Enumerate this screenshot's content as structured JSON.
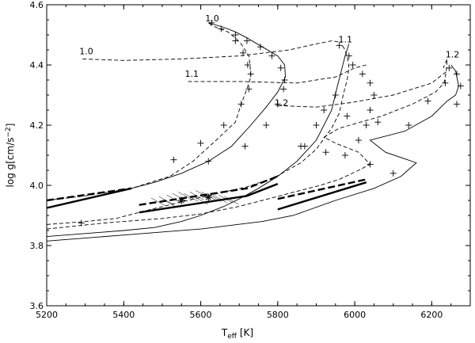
{
  "chart_data": {
    "type": "line",
    "xlabel": "T",
    "xlabel_sub": "eff",
    "xlabel_unit": " [K]",
    "ylabel": "log g[cm/s",
    "ylabel_sup": "−2",
    "ylabel_end": "]",
    "xlim": [
      5200,
      6300
    ],
    "ylim": [
      3.6,
      4.6
    ],
    "xticks": [
      5200,
      5400,
      5600,
      5800,
      6000,
      6200
    ],
    "yticks": [
      3.6,
      3.8,
      4.0,
      4.2,
      4.4,
      4.6
    ],
    "grid": false,
    "annotations": [
      {
        "text": "1.0",
        "x": 5620,
        "y": 4.545
      },
      {
        "text": "1.0",
        "x": 5293,
        "y": 4.435
      },
      {
        "text": "1.1",
        "x": 5966,
        "y": 4.475
      },
      {
        "text": "1.1",
        "x": 5567,
        "y": 4.36
      },
      {
        "text": "1.2",
        "x": 6244,
        "y": 4.425
      },
      {
        "text": "1.2",
        "x": 5800,
        "y": 4.265
      }
    ],
    "series": [
      {
        "style": "solid",
        "points": [
          [
            5200,
            3.83
          ],
          [
            5300,
            3.84
          ],
          [
            5400,
            3.85
          ],
          [
            5480,
            3.86
          ],
          [
            5550,
            3.88
          ],
          [
            5600,
            3.9
          ],
          [
            5660,
            3.93
          ],
          [
            5700,
            3.955
          ],
          [
            5750,
            3.99
          ],
          [
            5800,
            4.03
          ],
          [
            5850,
            4.08
          ],
          [
            5900,
            4.15
          ],
          [
            5940,
            4.25
          ],
          [
            5955,
            4.33
          ],
          [
            5965,
            4.38
          ],
          [
            5975,
            4.43
          ],
          [
            5985,
            4.47
          ]
        ]
      },
      {
        "style": "solid",
        "points": [
          [
            5200,
            3.815
          ],
          [
            5400,
            3.835
          ],
          [
            5600,
            3.855
          ],
          [
            5760,
            3.88
          ],
          [
            5840,
            3.9
          ],
          [
            5950,
            3.95
          ],
          [
            6050,
            3.99
          ],
          [
            6120,
            4.03
          ],
          [
            6160,
            4.075
          ],
          [
            6080,
            4.11
          ],
          [
            6040,
            4.15
          ],
          [
            6130,
            4.18
          ],
          [
            6200,
            4.23
          ],
          [
            6240,
            4.28
          ],
          [
            6262,
            4.3
          ],
          [
            6270,
            4.33
          ],
          [
            6262,
            4.38
          ],
          [
            6250,
            4.4
          ]
        ]
      },
      {
        "style": "solid",
        "points": [
          [
            5200,
            3.925
          ],
          [
            5300,
            3.955
          ],
          [
            5420,
            3.99
          ],
          [
            5480,
            4.01
          ],
          [
            5550,
            4.04
          ],
          [
            5620,
            4.08
          ],
          [
            5680,
            4.13
          ],
          [
            5730,
            4.2
          ],
          [
            5770,
            4.26
          ],
          [
            5800,
            4.31
          ],
          [
            5820,
            4.36
          ],
          [
            5818,
            4.4
          ],
          [
            5800,
            4.43
          ],
          [
            5760,
            4.46
          ],
          [
            5720,
            4.49
          ],
          [
            5690,
            4.51
          ],
          [
            5660,
            4.525
          ],
          [
            5620,
            4.54
          ]
        ]
      },
      {
        "style": "dashed",
        "points": [
          [
            5200,
            3.95
          ],
          [
            5300,
            3.965
          ],
          [
            5420,
            3.99
          ],
          [
            5520,
            4.03
          ],
          [
            5580,
            4.08
          ],
          [
            5640,
            4.15
          ],
          [
            5690,
            4.21
          ],
          [
            5705,
            4.27
          ],
          [
            5720,
            4.32
          ],
          [
            5730,
            4.36
          ],
          [
            5728,
            4.4
          ],
          [
            5725,
            4.43
          ],
          [
            5715,
            4.45
          ],
          [
            5705,
            4.47
          ],
          [
            5690,
            4.49
          ],
          [
            5670,
            4.51
          ],
          [
            5630,
            4.53
          ],
          [
            5620,
            4.54
          ]
        ]
      },
      {
        "style": "dashed",
        "points": [
          [
            5200,
            3.87
          ],
          [
            5300,
            3.88
          ],
          [
            5380,
            3.89
          ],
          [
            5470,
            3.92
          ],
          [
            5550,
            3.945
          ],
          [
            5600,
            3.96
          ],
          [
            5650,
            3.975
          ],
          [
            5720,
            3.995
          ],
          [
            5790,
            4.025
          ],
          [
            5860,
            4.075
          ],
          [
            5900,
            4.12
          ],
          [
            5940,
            4.19
          ],
          [
            5960,
            4.24
          ],
          [
            5970,
            4.3
          ],
          [
            5980,
            4.35
          ],
          [
            5985,
            4.39
          ],
          [
            5982,
            4.42
          ],
          [
            5975,
            4.45
          ],
          [
            5965,
            4.47
          ]
        ]
      },
      {
        "style": "dashed",
        "points": [
          [
            5200,
            3.855
          ],
          [
            5350,
            3.875
          ],
          [
            5500,
            3.89
          ],
          [
            5600,
            3.905
          ],
          [
            5700,
            3.93
          ],
          [
            5790,
            3.96
          ],
          [
            5850,
            3.98
          ],
          [
            5910,
            4.0
          ],
          [
            5960,
            4.02
          ],
          [
            6010,
            4.05
          ],
          [
            6040,
            4.07
          ],
          [
            6010,
            4.11
          ],
          [
            5950,
            4.14
          ],
          [
            5920,
            4.16
          ],
          [
            5960,
            4.19
          ],
          [
            6070,
            4.23
          ],
          [
            6150,
            4.27
          ],
          [
            6210,
            4.31
          ],
          [
            6232,
            4.34
          ],
          [
            6238,
            4.38
          ],
          [
            6240,
            4.42
          ],
          [
            6230,
            4.39
          ]
        ]
      },
      {
        "style": "dashed",
        "points": [
          [
            5293,
            4.42
          ],
          [
            5400,
            4.415
          ],
          [
            5550,
            4.42
          ],
          [
            5700,
            4.43
          ],
          [
            5830,
            4.45
          ],
          [
            5900,
            4.47
          ],
          [
            5940,
            4.48
          ],
          [
            5966,
            4.475
          ]
        ]
      },
      {
        "style": "dashed",
        "points": [
          [
            5567,
            4.345
          ],
          [
            5700,
            4.345
          ],
          [
            5850,
            4.34
          ],
          [
            5950,
            4.36
          ],
          [
            6000,
            4.39
          ],
          [
            6030,
            4.4
          ]
        ]
      },
      {
        "style": "dashed",
        "points": [
          [
            5800,
            4.265
          ],
          [
            5900,
            4.26
          ],
          [
            5990,
            4.275
          ],
          [
            6100,
            4.3
          ],
          [
            6200,
            4.34
          ],
          [
            6240,
            4.38
          ]
        ]
      }
    ],
    "bold_segments": [
      {
        "style": "solid",
        "points": [
          [
            5200,
            3.925
          ],
          [
            5420,
            3.99
          ]
        ]
      },
      {
        "style": "solid",
        "points": [
          [
            5440,
            3.91
          ],
          [
            5720,
            3.965
          ],
          [
            5800,
            4.005
          ]
        ]
      },
      {
        "style": "solid",
        "points": [
          [
            5800,
            3.92
          ],
          [
            6030,
            4.01
          ]
        ]
      },
      {
        "style": "dashed",
        "points": [
          [
            5200,
            3.95
          ],
          [
            5420,
            3.99
          ]
        ]
      },
      {
        "style": "dashed",
        "points": [
          [
            5440,
            3.935
          ],
          [
            5720,
            3.99
          ],
          [
            5800,
            4.03
          ]
        ]
      },
      {
        "style": "dashed",
        "points": [
          [
            5800,
            3.955
          ],
          [
            6030,
            4.02
          ]
        ]
      }
    ],
    "plus_markers": [
      [
        5628,
        4.54
      ],
      [
        5653,
        4.52
      ],
      [
        5690,
        4.5
      ],
      [
        5720,
        4.48
      ],
      [
        5755,
        4.46
      ],
      [
        5785,
        4.43
      ],
      [
        5808,
        4.39
      ],
      [
        5818,
        4.35
      ],
      [
        5815,
        4.32
      ],
      [
        5800,
        4.27
      ],
      [
        5770,
        4.2
      ],
      [
        5715,
        4.13
      ],
      [
        5620,
        4.08
      ],
      [
        5690,
        4.48
      ],
      [
        5710,
        4.44
      ],
      [
        5722,
        4.4
      ],
      [
        5730,
        4.37
      ],
      [
        5725,
        4.32
      ],
      [
        5705,
        4.27
      ],
      [
        5660,
        4.2
      ],
      [
        5600,
        4.14
      ],
      [
        5530,
        4.085
      ],
      [
        5290,
        3.875
      ],
      [
        5960,
        4.465
      ],
      [
        5985,
        4.43
      ],
      [
        5995,
        4.4
      ],
      [
        6020,
        4.37
      ],
      [
        6040,
        4.34
      ],
      [
        6050,
        4.3
      ],
      [
        6040,
        4.25
      ],
      [
        6030,
        4.2
      ],
      [
        6010,
        4.15
      ],
      [
        5975,
        4.1
      ],
      [
        5870,
        4.13
      ],
      [
        5950,
        4.3
      ],
      [
        5920,
        4.25
      ],
      [
        5900,
        4.2
      ],
      [
        5860,
        4.13
      ],
      [
        6245,
        4.39
      ],
      [
        6265,
        4.37
      ],
      [
        6275,
        4.33
      ],
      [
        6265,
        4.27
      ],
      [
        6140,
        4.2
      ],
      [
        6060,
        4.21
      ],
      [
        6040,
        4.07
      ],
      [
        6100,
        4.04
      ],
      [
        6190,
        4.28
      ],
      [
        6235,
        4.34
      ],
      [
        5980,
        4.23
      ],
      [
        5925,
        4.11
      ]
    ],
    "star_markers": [
      [
        5550,
        3.95
      ],
      [
        5620,
        3.96
      ]
    ],
    "cross_cluster": [
      [
        5490,
        3.945
      ],
      [
        5510,
        3.95
      ],
      [
        5530,
        3.955
      ],
      [
        5545,
        3.96
      ],
      [
        5560,
        3.965
      ],
      [
        5575,
        3.96
      ],
      [
        5590,
        3.965
      ],
      [
        5605,
        3.97
      ],
      [
        5620,
        3.965
      ],
      [
        5635,
        3.96
      ],
      [
        5650,
        3.955
      ],
      [
        5665,
        3.955
      ],
      [
        5680,
        3.95
      ],
      [
        5520,
        3.94
      ],
      [
        5600,
        3.95
      ]
    ]
  }
}
